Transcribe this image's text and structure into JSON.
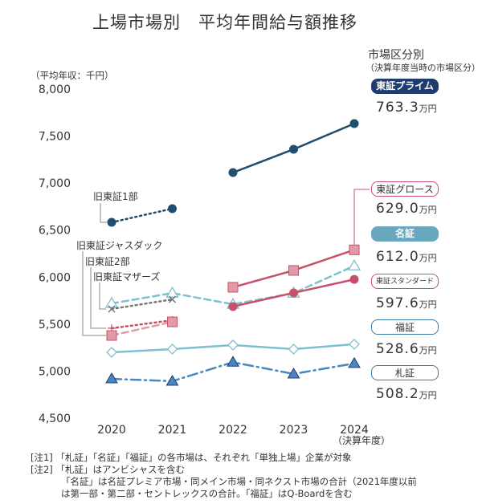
{
  "chart_data": {
    "type": "line",
    "title": "上場市場別　平均年間給与額推移",
    "ylabel": "（平均年収：千円）",
    "xlabel": "（決算年度）",
    "ylim": [
      4500,
      8000
    ],
    "yticks": [
      "4,500",
      "5,000",
      "5,500",
      "6,000",
      "6,500",
      "7,000",
      "7,500",
      "8,000"
    ],
    "ytick_values": [
      4500,
      5000,
      5500,
      6000,
      6500,
      7000,
      7500,
      8000
    ],
    "categories": [
      "2020",
      "2021",
      "2022",
      "2023",
      "2024"
    ],
    "grid": false,
    "series": [
      {
        "name": "東証プライム",
        "color": "#1f4e6e",
        "style": "solid",
        "marker": "circle",
        "values": [
          null,
          null,
          7112,
          7360,
          7633
        ]
      },
      {
        "name": "旧東証1部",
        "color": "#1f4e6e",
        "style": "dotted",
        "marker": "circle",
        "values": [
          6583,
          6728,
          null,
          null,
          null
        ]
      },
      {
        "name": "東証グロース",
        "color": "#c8506a",
        "style": "solid",
        "marker": "square",
        "values": [
          null,
          null,
          5892,
          6071,
          6290
        ]
      },
      {
        "name": "名証",
        "color": "#7fc0d0",
        "style": "dashed",
        "marker": "triangle-open",
        "values": [
          5720,
          5830,
          5711,
          5830,
          6120
        ]
      },
      {
        "name": "東証スタンダード",
        "color": "#c8506a",
        "style": "solid",
        "marker": "circle",
        "values": [
          null,
          null,
          5687,
          5832,
          5976
        ]
      },
      {
        "name": "旧東証マザーズ",
        "color": "#777777",
        "style": "dotted",
        "marker": "x",
        "values": [
          5661,
          5763,
          null,
          null,
          null
        ]
      },
      {
        "name": "旧東証2部",
        "color": "#c8506a",
        "style": "dotted",
        "marker": "plus",
        "values": [
          5456,
          5541,
          null,
          null,
          null
        ]
      },
      {
        "name": "旧東証ジャスダック",
        "color": "#e09aa8",
        "style": "dashed",
        "marker": "square",
        "values": [
          5379,
          5524,
          null,
          null,
          null
        ]
      },
      {
        "name": "福証",
        "color": "#7fc0d0",
        "style": "solid",
        "marker": "diamond-open",
        "values": [
          5200,
          5234,
          5277,
          5234,
          5286
        ]
      },
      {
        "name": "札証",
        "color": "#4a86c0",
        "style": "dashdot",
        "marker": "triangle",
        "values": [
          4918,
          4893,
          5095,
          4970,
          5082
        ]
      }
    ]
  },
  "legend": {
    "heading": "市場区分別",
    "subheading": "（決算年度当時の市場区分）",
    "unit": "万円",
    "items": [
      {
        "label": "東証プライム",
        "value": "763.3"
      },
      {
        "label": "東証グロース",
        "value": "629.0"
      },
      {
        "label": "名証",
        "value": "612.0"
      },
      {
        "label": "東証スタンダード",
        "value": "597.6"
      },
      {
        "label": "福証",
        "value": "528.6"
      },
      {
        "label": "札証",
        "value": "508.2"
      }
    ]
  },
  "notes": [
    {
      "tag": "[注1]",
      "text": "「札証」「名証」「福証」の各市場は、それぞれ「単独上場」企業が対象"
    },
    {
      "tag": "[注2]",
      "text": "「札証」はアンビシャスを含む"
    },
    {
      "tag": "",
      "text": "「名証」は名証プレミア市場・同メイン市場・同ネクスト市場の合計（2021年度以前"
    },
    {
      "tag": "",
      "text": "は第一部・第二部・セントレックスの合計。「福証」はQ-Boardを含む"
    }
  ]
}
